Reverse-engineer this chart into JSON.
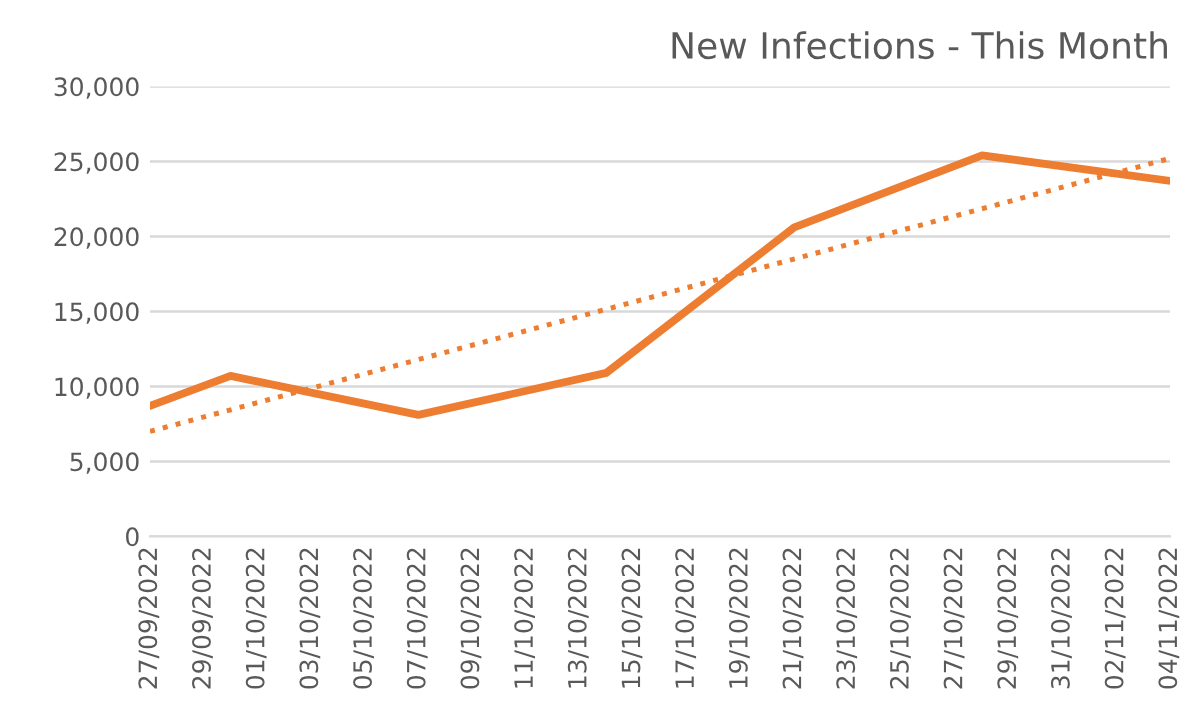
{
  "chart_data": {
    "type": "line",
    "title": "New Infections - This Month",
    "x": [
      "2022-09-27",
      "2022-09-30",
      "2022-10-07",
      "2022-10-14",
      "2022-10-21",
      "2022-10-28",
      "2022-11-04"
    ],
    "series": [
      {
        "color": "#ed7d31",
        "line_style": "solid",
        "values": [
          8700,
          10700,
          8100,
          10900,
          20600,
          25400,
          23700
        ]
      },
      {
        "type": "line",
        "color": "#ed7d31",
        "line_style": "dotted",
        "x": [
          "2022-09-27",
          "2022-11-04"
        ],
        "values": [
          7000,
          25200
        ]
      }
    ],
    "xlim": [
      "2022-09-27",
      "2022-11-04"
    ],
    "xticks": [
      {
        "value": "2022-09-27",
        "label": "27/09/2022"
      },
      {
        "value": "2022-09-29",
        "label": "29/09/2022"
      },
      {
        "value": "2022-10-01",
        "label": "01/10/2022"
      },
      {
        "value": "2022-10-03",
        "label": "03/10/2022"
      },
      {
        "value": "2022-10-05",
        "label": "05/10/2022"
      },
      {
        "value": "2022-10-07",
        "label": "07/10/2022"
      },
      {
        "value": "2022-10-09",
        "label": "09/10/2022"
      },
      {
        "value": "2022-10-11",
        "label": "11/10/2022"
      },
      {
        "value": "2022-10-13",
        "label": "13/10/2022"
      },
      {
        "value": "2022-10-15",
        "label": "15/10/2022"
      },
      {
        "value": "2022-10-17",
        "label": "17/10/2022"
      },
      {
        "value": "2022-10-19",
        "label": "19/10/2022"
      },
      {
        "value": "2022-10-21",
        "label": "21/10/2022"
      },
      {
        "value": "2022-10-23",
        "label": "23/10/2022"
      },
      {
        "value": "2022-10-25",
        "label": "25/10/2022"
      },
      {
        "value": "2022-10-27",
        "label": "27/10/2022"
      },
      {
        "value": "2022-10-29",
        "label": "29/10/2022"
      },
      {
        "value": "2022-10-31",
        "label": "31/10/2022"
      },
      {
        "value": "2022-11-02",
        "label": "02/11/2022"
      },
      {
        "value": "2022-11-04",
        "label": "04/11/2022"
      }
    ],
    "ylim": [
      0,
      30000
    ],
    "yticks": [
      {
        "value": 0,
        "label": "0"
      },
      {
        "value": 5000,
        "label": "5,000"
      },
      {
        "value": 10000,
        "label": "10,000"
      },
      {
        "value": 15000,
        "label": "15,000"
      },
      {
        "value": 20000,
        "label": "20,000"
      },
      {
        "value": 25000,
        "label": "25,000"
      },
      {
        "value": 30000,
        "label": "30,000"
      }
    ],
    "grid": "y",
    "marker": "none"
  }
}
